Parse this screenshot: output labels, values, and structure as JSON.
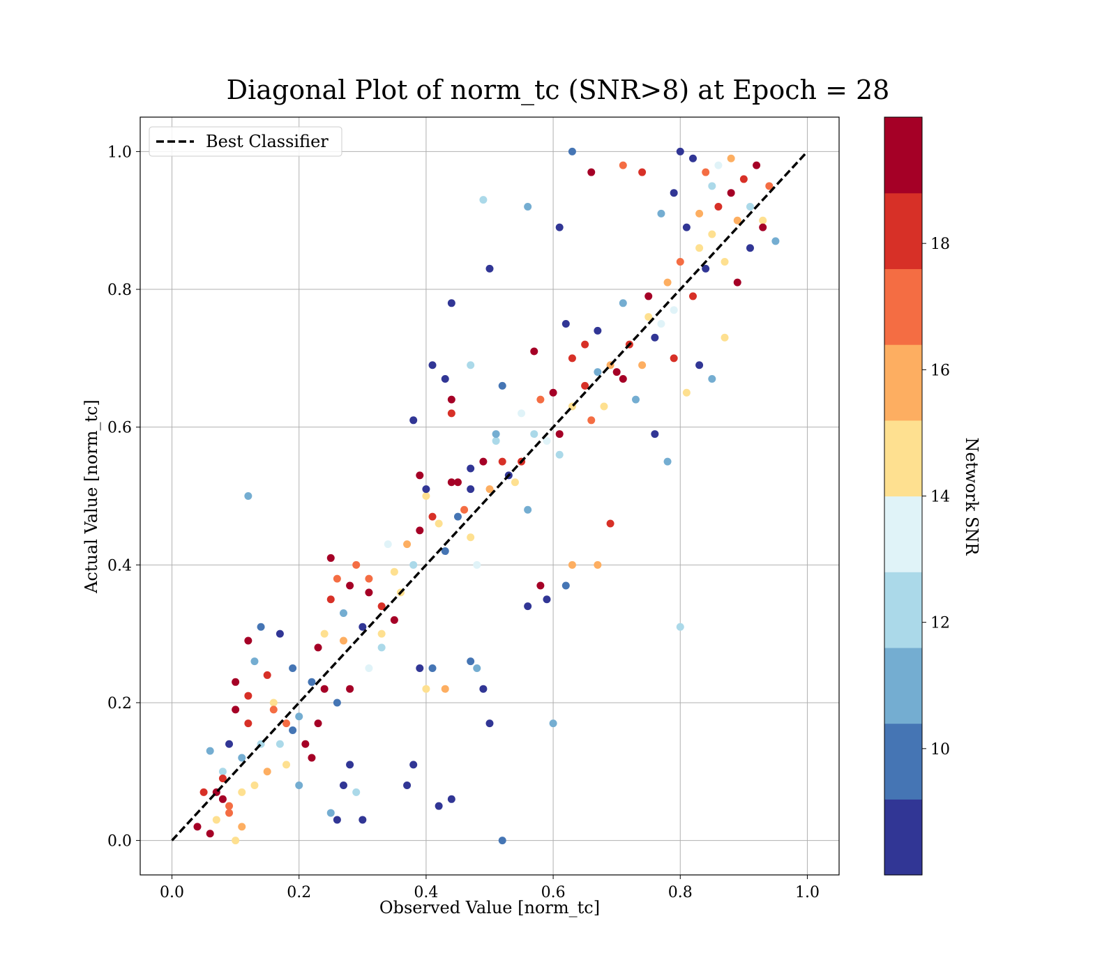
{
  "chart_data": {
    "type": "scatter",
    "title": "Diagonal Plot of norm_tc (SNR>8) at Epoch = 28",
    "xlabel": "Observed Value [norm_tc]",
    "ylabel": "Actual Value [norm_tc]",
    "xlim": [
      -0.05,
      1.05
    ],
    "ylim": [
      -0.05,
      1.05
    ],
    "xticks": [
      "0.0",
      "0.2",
      "0.4",
      "0.6",
      "0.8",
      "1.0"
    ],
    "yticks": [
      "0.0",
      "0.2",
      "0.4",
      "0.6",
      "0.8",
      "1.0"
    ],
    "grid": true,
    "legend": {
      "position": "upper-left",
      "entries": [
        "Best Classifier"
      ]
    },
    "reference_line": {
      "name": "Best Classifier",
      "style": "dashed",
      "color": "#000000",
      "x": [
        0,
        1
      ],
      "y": [
        0,
        1
      ]
    },
    "colorbar": {
      "label": "Network SNR",
      "range": [
        8,
        20
      ],
      "ticks": [
        "10",
        "12",
        "14",
        "16",
        "18"
      ],
      "colors": [
        "#313695",
        "#4575b4",
        "#74add1",
        "#abd9e9",
        "#e0f3f8",
        "#fee090",
        "#fdae61",
        "#f46d43",
        "#d73027",
        "#a50026"
      ]
    },
    "points": [
      [
        0.04,
        0.02,
        19
      ],
      [
        0.05,
        0.07,
        18
      ],
      [
        0.06,
        0.01,
        19
      ],
      [
        0.07,
        0.03,
        15
      ],
      [
        0.08,
        0.06,
        19
      ],
      [
        0.09,
        0.04,
        17
      ],
      [
        0.1,
        0.0,
        14
      ],
      [
        0.11,
        0.02,
        16
      ],
      [
        0.08,
        0.1,
        12
      ],
      [
        0.06,
        0.13,
        11
      ],
      [
        0.1,
        0.23,
        19
      ],
      [
        0.12,
        0.21,
        18
      ],
      [
        0.13,
        0.26,
        11
      ],
      [
        0.15,
        0.24,
        18
      ],
      [
        0.14,
        0.31,
        10
      ],
      [
        0.12,
        0.29,
        19
      ],
      [
        0.16,
        0.2,
        14
      ],
      [
        0.18,
        0.17,
        17
      ],
      [
        0.17,
        0.3,
        9
      ],
      [
        0.19,
        0.25,
        10
      ],
      [
        0.2,
        0.18,
        11
      ],
      [
        0.22,
        0.12,
        19
      ],
      [
        0.24,
        0.3,
        15
      ],
      [
        0.23,
        0.28,
        19
      ],
      [
        0.25,
        0.35,
        18
      ],
      [
        0.26,
        0.38,
        17
      ],
      [
        0.27,
        0.29,
        16
      ],
      [
        0.28,
        0.37,
        19
      ],
      [
        0.3,
        0.31,
        9
      ],
      [
        0.31,
        0.38,
        17
      ],
      [
        0.33,
        0.3,
        15
      ],
      [
        0.34,
        0.43,
        13
      ],
      [
        0.35,
        0.39,
        15
      ],
      [
        0.36,
        0.36,
        14
      ],
      [
        0.38,
        0.4,
        12
      ],
      [
        0.38,
        0.61,
        9
      ],
      [
        0.4,
        0.5,
        14
      ],
      [
        0.42,
        0.46,
        15
      ],
      [
        0.44,
        0.52,
        19
      ],
      [
        0.46,
        0.48,
        17
      ],
      [
        0.47,
        0.44,
        15
      ],
      [
        0.48,
        0.4,
        13
      ],
      [
        0.5,
        0.51,
        16
      ],
      [
        0.51,
        0.58,
        12
      ],
      [
        0.52,
        0.55,
        18
      ],
      [
        0.54,
        0.52,
        15
      ],
      [
        0.55,
        0.62,
        13
      ],
      [
        0.56,
        0.48,
        11
      ],
      [
        0.57,
        0.71,
        19
      ],
      [
        0.58,
        0.64,
        17
      ],
      [
        0.6,
        0.65,
        19
      ],
      [
        0.61,
        0.56,
        12
      ],
      [
        0.62,
        0.75,
        9
      ],
      [
        0.63,
        0.7,
        18
      ],
      [
        0.65,
        0.72,
        18
      ],
      [
        0.66,
        0.61,
        17
      ],
      [
        0.67,
        0.74,
        9
      ],
      [
        0.68,
        0.63,
        15
      ],
      [
        0.7,
        0.68,
        19
      ],
      [
        0.71,
        0.78,
        11
      ],
      [
        0.72,
        0.72,
        18
      ],
      [
        0.74,
        0.69,
        16
      ],
      [
        0.75,
        0.76,
        14
      ],
      [
        0.76,
        0.73,
        9
      ],
      [
        0.78,
        0.81,
        16
      ],
      [
        0.79,
        0.77,
        13
      ],
      [
        0.8,
        0.84,
        17
      ],
      [
        0.82,
        0.79,
        18
      ],
      [
        0.83,
        0.86,
        15
      ],
      [
        0.84,
        0.83,
        9
      ],
      [
        0.85,
        0.88,
        14
      ],
      [
        0.86,
        0.92,
        18
      ],
      [
        0.87,
        0.84,
        15
      ],
      [
        0.88,
        0.94,
        19
      ],
      [
        0.89,
        0.9,
        16
      ],
      [
        0.9,
        0.96,
        18
      ],
      [
        0.91,
        0.92,
        12
      ],
      [
        0.92,
        0.98,
        19
      ],
      [
        0.93,
        0.9,
        14
      ],
      [
        0.94,
        0.95,
        17
      ],
      [
        0.12,
        0.5,
        11
      ],
      [
        0.44,
        0.78,
        9
      ],
      [
        0.49,
        0.93,
        12
      ],
      [
        0.56,
        0.92,
        11
      ],
      [
        0.5,
        0.83,
        9
      ],
      [
        0.63,
        1.0,
        10
      ],
      [
        0.66,
        0.97,
        19
      ],
      [
        0.71,
        0.98,
        17
      ],
      [
        0.74,
        0.97,
        18
      ],
      [
        0.61,
        0.89,
        9
      ],
      [
        0.52,
        0.0,
        10
      ],
      [
        0.42,
        0.05,
        9
      ],
      [
        0.44,
        0.06,
        9
      ],
      [
        0.3,
        0.03,
        9
      ],
      [
        0.6,
        0.17,
        11
      ],
      [
        0.5,
        0.17,
        9
      ],
      [
        0.8,
        0.31,
        12
      ],
      [
        0.78,
        0.55,
        11
      ],
      [
        0.76,
        0.59,
        9
      ],
      [
        0.69,
        0.46,
        18
      ],
      [
        0.67,
        0.4,
        16
      ],
      [
        0.63,
        0.4,
        16
      ],
      [
        0.62,
        0.37,
        10
      ],
      [
        0.58,
        0.37,
        19
      ],
      [
        0.59,
        0.35,
        9
      ],
      [
        0.56,
        0.34,
        9
      ],
      [
        0.49,
        0.22,
        9
      ],
      [
        0.48,
        0.25,
        11
      ],
      [
        0.47,
        0.26,
        10
      ],
      [
        0.41,
        0.25,
        10
      ],
      [
        0.39,
        0.25,
        9
      ],
      [
        0.43,
        0.22,
        16
      ],
      [
        0.4,
        0.22,
        15
      ],
      [
        0.37,
        0.08,
        9
      ],
      [
        0.38,
        0.11,
        9
      ],
      [
        0.28,
        0.11,
        9
      ],
      [
        0.26,
        0.03,
        9
      ],
      [
        0.25,
        0.04,
        11
      ],
      [
        0.29,
        0.07,
        12
      ],
      [
        0.27,
        0.08,
        9
      ],
      [
        0.43,
        0.67,
        9
      ],
      [
        0.41,
        0.69,
        9
      ],
      [
        0.47,
        0.69,
        12
      ],
      [
        0.44,
        0.62,
        18
      ],
      [
        0.44,
        0.64,
        19
      ],
      [
        0.52,
        0.66,
        10
      ],
      [
        0.45,
        0.52,
        19
      ],
      [
        0.47,
        0.51,
        9
      ],
      [
        0.39,
        0.53,
        19
      ],
      [
        0.4,
        0.51,
        9
      ],
      [
        0.15,
        0.1,
        16
      ],
      [
        0.13,
        0.08,
        14
      ],
      [
        0.11,
        0.12,
        11
      ],
      [
        0.09,
        0.14,
        9
      ],
      [
        0.17,
        0.14,
        12
      ],
      [
        0.19,
        0.16,
        10
      ],
      [
        0.21,
        0.14,
        19
      ],
      [
        0.23,
        0.17,
        19
      ],
      [
        0.24,
        0.22,
        19
      ],
      [
        0.22,
        0.23,
        10
      ],
      [
        0.26,
        0.2,
        10
      ],
      [
        0.28,
        0.22,
        19
      ],
      [
        0.31,
        0.25,
        13
      ],
      [
        0.33,
        0.28,
        12
      ],
      [
        0.35,
        0.32,
        19
      ],
      [
        0.33,
        0.34,
        18
      ],
      [
        0.31,
        0.36,
        19
      ],
      [
        0.29,
        0.4,
        17
      ],
      [
        0.27,
        0.33,
        11
      ],
      [
        0.25,
        0.41,
        19
      ],
      [
        0.37,
        0.43,
        16
      ],
      [
        0.39,
        0.45,
        19
      ],
      [
        0.41,
        0.47,
        18
      ],
      [
        0.43,
        0.42,
        10
      ],
      [
        0.45,
        0.47,
        10
      ],
      [
        0.47,
        0.54,
        9
      ],
      [
        0.49,
        0.55,
        19
      ],
      [
        0.51,
        0.59,
        11
      ],
      [
        0.53,
        0.53,
        9
      ],
      [
        0.55,
        0.55,
        18
      ],
      [
        0.57,
        0.59,
        12
      ],
      [
        0.59,
        0.58,
        13
      ],
      [
        0.61,
        0.59,
        19
      ],
      [
        0.63,
        0.63,
        14
      ],
      [
        0.65,
        0.66,
        18
      ],
      [
        0.67,
        0.68,
        11
      ],
      [
        0.69,
        0.69,
        16
      ],
      [
        0.71,
        0.67,
        19
      ],
      [
        0.73,
        0.64,
        11
      ],
      [
        0.75,
        0.79,
        19
      ],
      [
        0.77,
        0.75,
        13
      ],
      [
        0.79,
        0.7,
        18
      ],
      [
        0.81,
        0.65,
        15
      ],
      [
        0.83,
        0.69,
        9
      ],
      [
        0.85,
        0.67,
        11
      ],
      [
        0.87,
        0.73,
        14
      ],
      [
        0.89,
        0.81,
        19
      ],
      [
        0.91,
        0.86,
        9
      ],
      [
        0.93,
        0.89,
        19
      ],
      [
        0.95,
        0.87,
        11
      ],
      [
        0.88,
        0.99,
        16
      ],
      [
        0.86,
        0.98,
        13
      ],
      [
        0.84,
        0.97,
        17
      ],
      [
        0.82,
        0.99,
        9
      ],
      [
        0.8,
        1.0,
        9
      ],
      [
        0.79,
        0.94,
        9
      ],
      [
        0.77,
        0.91,
        11
      ],
      [
        0.81,
        0.89,
        9
      ],
      [
        0.83,
        0.91,
        16
      ],
      [
        0.85,
        0.95,
        12
      ],
      [
        0.07,
        0.07,
        19
      ],
      [
        0.08,
        0.09,
        18
      ],
      [
        0.1,
        0.19,
        19
      ],
      [
        0.12,
        0.17,
        18
      ],
      [
        0.14,
        0.14,
        12
      ],
      [
        0.16,
        0.19,
        17
      ],
      [
        0.18,
        0.11,
        14
      ],
      [
        0.2,
        0.08,
        11
      ],
      [
        0.09,
        0.05,
        17
      ],
      [
        0.11,
        0.07,
        15
      ]
    ]
  }
}
